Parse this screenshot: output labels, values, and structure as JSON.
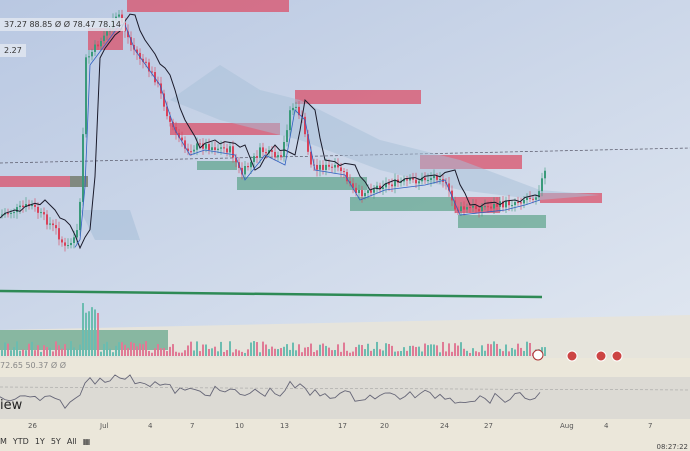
{
  "legend_main": "37.27 88.85 Ø Ø 78.47 78.14",
  "price_tag": "2.27",
  "rsi_legend": "72.65 50.37 Ø Ø",
  "brand_fragment": "iew",
  "x_ticks": [
    "26",
    "Jul",
    "4",
    "7",
    "10",
    "13",
    "17",
    "20",
    "24",
    "27",
    "Aug",
    "4",
    "7"
  ],
  "ranges": [
    "M",
    "YTD",
    "1Y",
    "5Y",
    "All"
  ],
  "clock": "08:27:22",
  "colors": {
    "up": "#3a9a7a",
    "down": "#d9425a",
    "zone_red": "#d9506a",
    "zone_green": "#4a9a7a",
    "line": "#1a1a2a",
    "cloud": "#a8c0d8",
    "rsi": "#666677"
  }
}
